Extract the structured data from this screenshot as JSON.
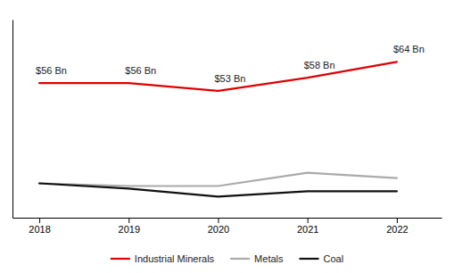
{
  "chart_data": {
    "type": "line",
    "x": [
      2018,
      2019,
      2020,
      2021,
      2022
    ],
    "xlim": [
      2017.7,
      2022.5
    ],
    "xticks": [
      2018,
      2019,
      2020,
      2021,
      2022
    ],
    "ylim": [
      5,
      80
    ],
    "tick_labels": "x",
    "grid": false,
    "legend": "bottom",
    "series": [
      {
        "name": "Industrial Minerals",
        "color": "#e00000",
        "values": [
          56,
          56,
          53,
          58,
          64
        ],
        "data_labels": true,
        "value_labels": [
          "$56 Bn",
          "$56 Bn",
          "$53 Bn",
          "$58 Bn",
          "$64 Bn"
        ]
      },
      {
        "name": "Metals",
        "color": "#aaaaaa",
        "values": [
          18,
          17,
          17,
          22,
          20
        ]
      },
      {
        "name": "Coal",
        "color": "#111111",
        "values": [
          18,
          16,
          13,
          15,
          15
        ]
      }
    ]
  }
}
